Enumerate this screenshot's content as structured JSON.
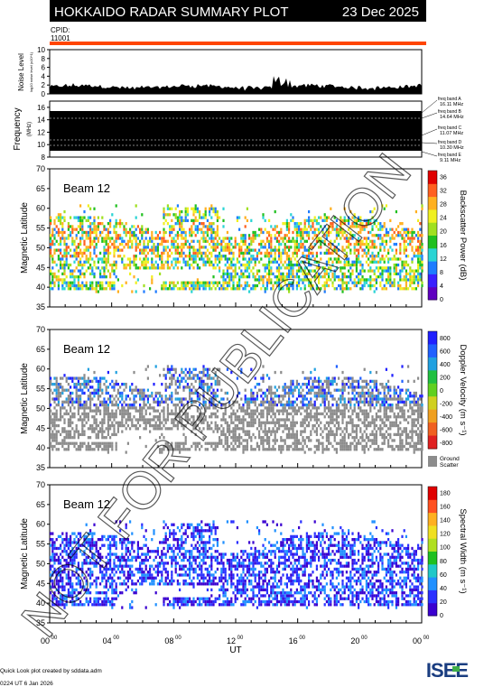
{
  "header": {
    "title": "HOKKAIDO RADAR SUMMARY PLOT",
    "date": "23 Dec 2025",
    "cpid_label": "CPID:",
    "cpid_value": "11001"
  },
  "colors": {
    "header_bg": "#000000",
    "header_text": "#ffffff",
    "cpid_bar": "#ff4500",
    "freq_panel_fill": "#000000",
    "ground_scatter": "#8c8c8c",
    "watermark": "#000000"
  },
  "noise_panel": {
    "ylabel": "Noise Level",
    "ylabel_small": "log10 noise level (x10^1)",
    "yticks": [
      "0",
      "2",
      "4",
      "6",
      "8",
      "10"
    ],
    "ylim": [
      0,
      10
    ]
  },
  "frequency_panel": {
    "ylabel": "Frequency",
    "unit": "(MHz)",
    "yticks": [
      "8",
      "10",
      "12",
      "14",
      "16"
    ],
    "ylim": [
      8,
      17
    ],
    "bands": [
      {
        "name": "freq band A",
        "value": "16.11 MHz"
      },
      {
        "name": "freq band B",
        "value": "14.64 MHz"
      },
      {
        "name": "freq band C",
        "value": "11.07 MHz"
      },
      {
        "name": "freq band D",
        "value": "10.30 MHz"
      },
      {
        "name": "freq band E",
        "value": "9.11 MHz"
      }
    ]
  },
  "chart_data": [
    {
      "type": "heatmap",
      "title": "Beam 12",
      "ylabel": "Magnetic Latitude",
      "yticks": [
        "35",
        "40",
        "45",
        "50",
        "55",
        "60",
        "65",
        "70"
      ],
      "ylim": [
        35,
        70
      ],
      "colorbar": {
        "label": "Backscatter Power (dB)",
        "ticks": [
          "0",
          "4",
          "8",
          "12",
          "16",
          "20",
          "24",
          "28",
          "32",
          "36"
        ],
        "range": [
          0,
          36
        ]
      }
    },
    {
      "type": "heatmap",
      "title": "Beam 12",
      "ylabel": "Magnetic Latitude",
      "yticks": [
        "35",
        "40",
        "45",
        "50",
        "55",
        "60",
        "65",
        "70"
      ],
      "ylim": [
        35,
        70
      ],
      "colorbar": {
        "label": "Doppler Velocity (m s⁻¹)",
        "ticks": [
          "800",
          "600",
          "400",
          "200",
          "0",
          "-200",
          "-400",
          "-600",
          "-800"
        ],
        "range": [
          -800,
          800
        ]
      },
      "ground_scatter_label_1": "Ground",
      "ground_scatter_label_2": "Scatter"
    },
    {
      "type": "heatmap",
      "title": "Beam 12",
      "ylabel": "Magnetic Latitude",
      "yticks": [
        "35",
        "40",
        "45",
        "50",
        "55",
        "60",
        "65",
        "70"
      ],
      "ylim": [
        35,
        70
      ],
      "colorbar": {
        "label": "Spectral Width (m s⁻¹)",
        "ticks": [
          "0",
          "20",
          "40",
          "60",
          "80",
          "100",
          "120",
          "140",
          "160",
          "180"
        ],
        "range": [
          0,
          180
        ]
      }
    }
  ],
  "x_axis": {
    "xlabel": "UT",
    "ticks": [
      "00",
      "04",
      "08",
      "12",
      "16",
      "20",
      "00"
    ],
    "tick_sup": "00",
    "range_hours": [
      0,
      24
    ]
  },
  "footer": {
    "line1": "Quick Look plot created by sddata.adm",
    "line2": "0224 UT  6 Jan 2026",
    "logo_text": "ISEE"
  },
  "watermark": "NOT FOR PUBLICATION"
}
